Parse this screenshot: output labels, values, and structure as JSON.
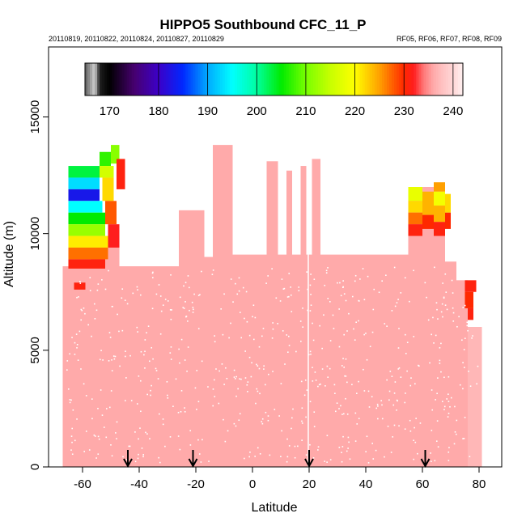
{
  "chart_data": {
    "type": "heatmap",
    "title": "HIPPO5 Southbound CFC_11_P",
    "subtitle_left": "20110819, 20110822, 20110824, 20110827, 20110829",
    "subtitle_right": "RF05, RF06, RF07, RF08, RF09",
    "xlabel": "Latitude",
    "ylabel": "Altitude (m)",
    "xlim": [
      -72,
      88
    ],
    "ylim": [
      0,
      18000
    ],
    "x_ticks": [
      -60,
      -40,
      -20,
      0,
      20,
      40,
      60,
      80
    ],
    "y_ticks": [
      0,
      5000,
      10000,
      15000
    ],
    "colorbar": {
      "range": [
        165,
        242
      ],
      "ticks": [
        170,
        180,
        190,
        200,
        210,
        220,
        230,
        240
      ],
      "orientation": "horizontal",
      "placement": "top"
    },
    "arrows_latitude": [
      -44,
      -21,
      20,
      61
    ],
    "background_value": 235.5,
    "columns": [
      {
        "x0": -67,
        "x1": -57,
        "top": 8600,
        "value": 236
      },
      {
        "x0": -57,
        "x1": -47,
        "top": 9400,
        "value": 236
      },
      {
        "x0": -47,
        "x1": -26,
        "top": 8600,
        "value": 236
      },
      {
        "x0": -26,
        "x1": -17,
        "top": 11000,
        "value": 236
      },
      {
        "x0": -17,
        "x1": -14,
        "top": 9000,
        "value": 236
      },
      {
        "x0": -14,
        "x1": -7,
        "top": 13800,
        "value": 236
      },
      {
        "x0": -7,
        "x1": 5,
        "top": 9100,
        "value": 236
      },
      {
        "x0": 5,
        "x1": 9,
        "top": 13100,
        "value": 236
      },
      {
        "x0": 9,
        "x1": 12,
        "top": 9100,
        "value": 236
      },
      {
        "x0": 12,
        "x1": 14,
        "top": 12700,
        "value": 236
      },
      {
        "x0": 14,
        "x1": 17,
        "top": 9100,
        "value": 236
      },
      {
        "x0": 17,
        "x1": 19,
        "top": 12900,
        "value": 236
      },
      {
        "x0": 19,
        "x1": 21,
        "top": 9100,
        "value": 236
      },
      {
        "x0": 21,
        "x1": 24,
        "top": 13200,
        "value": 236
      },
      {
        "x0": 24,
        "x1": 55,
        "top": 9100,
        "value": 236
      },
      {
        "x0": 55,
        "x1": 68,
        "top": 12000,
        "value": 236
      },
      {
        "x0": 68,
        "x1": 72,
        "top": 8800,
        "value": 236
      },
      {
        "x0": 72,
        "x1": 76,
        "top": 8000,
        "value": 236
      },
      {
        "x0": 76,
        "x1": 81,
        "top": 6000,
        "value": 237
      }
    ],
    "cells": [
      {
        "x0": -65,
        "x1": -54,
        "y0": 12400,
        "y1": 12900,
        "value": 203
      },
      {
        "x0": -65,
        "x1": -54,
        "y0": 11900,
        "y1": 12400,
        "value": 193
      },
      {
        "x0": -65,
        "x1": -54,
        "y0": 11400,
        "y1": 11900,
        "value": 183
      },
      {
        "x0": -65,
        "x1": -53,
        "y0": 10900,
        "y1": 11400,
        "value": 195
      },
      {
        "x0": -65,
        "x1": -52,
        "y0": 10400,
        "y1": 10900,
        "value": 205
      },
      {
        "x0": -65,
        "x1": -52,
        "y0": 9900,
        "y1": 10400,
        "value": 212
      },
      {
        "x0": -65,
        "x1": -51,
        "y0": 9400,
        "y1": 9900,
        "value": 221
      },
      {
        "x0": -65,
        "x1": -51,
        "y0": 8900,
        "y1": 9400,
        "value": 227
      },
      {
        "x0": -65,
        "x1": -52,
        "y0": 8500,
        "y1": 8900,
        "value": 231
      },
      {
        "x0": -54,
        "x1": -50,
        "y0": 12900,
        "y1": 13500,
        "value": 207
      },
      {
        "x0": -50,
        "x1": -47,
        "y0": 13000,
        "y1": 13800,
        "value": 211
      },
      {
        "x0": -54,
        "x1": -49,
        "y0": 12400,
        "y1": 12900,
        "value": 216
      },
      {
        "x0": -53,
        "x1": -49,
        "y0": 11400,
        "y1": 12400,
        "value": 222
      },
      {
        "x0": -52,
        "x1": -48,
        "y0": 10400,
        "y1": 11400,
        "value": 228
      },
      {
        "x0": -51,
        "x1": -47,
        "y0": 9400,
        "y1": 10400,
        "value": 232
      },
      {
        "x0": -48,
        "x1": -45,
        "y0": 11900,
        "y1": 13200,
        "value": 231
      },
      {
        "x0": -63,
        "x1": -59,
        "y0": 7600,
        "y1": 7900,
        "value": 231
      },
      {
        "x0": 55,
        "x1": 60,
        "y0": 11400,
        "y1": 12000,
        "value": 218
      },
      {
        "x0": 55,
        "x1": 60,
        "y0": 10900,
        "y1": 11400,
        "value": 222
      },
      {
        "x0": 55,
        "x1": 60,
        "y0": 10400,
        "y1": 10900,
        "value": 227
      },
      {
        "x0": 55,
        "x1": 60,
        "y0": 9900,
        "y1": 10400,
        "value": 231
      },
      {
        "x0": 60,
        "x1": 64,
        "y0": 10800,
        "y1": 11800,
        "value": 224
      },
      {
        "x0": 60,
        "x1": 64,
        "y0": 10200,
        "y1": 10800,
        "value": 230
      },
      {
        "x0": 64,
        "x1": 68,
        "y0": 11800,
        "y1": 12200,
        "value": 225
      },
      {
        "x0": 64,
        "x1": 68,
        "y0": 11200,
        "y1": 11800,
        "value": 219
      },
      {
        "x0": 64,
        "x1": 68,
        "y0": 10500,
        "y1": 11200,
        "value": 224
      },
      {
        "x0": 64,
        "x1": 68,
        "y0": 9900,
        "y1": 10500,
        "value": 231
      },
      {
        "x0": 68,
        "x1": 70,
        "y0": 10900,
        "y1": 11700,
        "value": 222
      },
      {
        "x0": 68,
        "x1": 70,
        "y0": 10200,
        "y1": 10900,
        "value": 230
      },
      {
        "x0": 75,
        "x1": 79,
        "y0": 7500,
        "y1": 8000,
        "value": 231
      },
      {
        "x0": 75,
        "x1": 78,
        "y0": 6800,
        "y1": 7500,
        "value": 230
      },
      {
        "x0": 76,
        "x1": 78,
        "y0": 6300,
        "y1": 6800,
        "value": 231
      }
    ]
  }
}
